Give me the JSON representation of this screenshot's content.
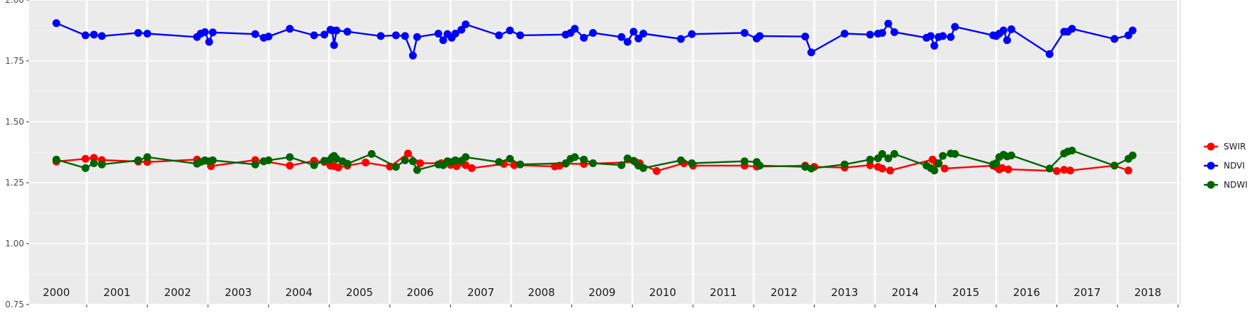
{
  "chart_data": {
    "type": "line",
    "title": "",
    "xlabel": "",
    "ylabel": "",
    "ylim": [
      0.75,
      2.0
    ],
    "yticks": [
      "0.75",
      "1.00",
      "1.25",
      "1.50",
      "1.75",
      "2.00"
    ],
    "xlim": [
      1999.55,
      2018.55
    ],
    "year_labels": [
      "2000",
      "2001",
      "2002",
      "2003",
      "2004",
      "2005",
      "2006",
      "2007",
      "2008",
      "2009",
      "2010",
      "2011",
      "2012",
      "2013",
      "2014",
      "2015",
      "2016",
      "2017",
      "2018"
    ],
    "grid": true,
    "legend_position": "right",
    "series": [
      {
        "name": "SWIR",
        "color": "#ff0000",
        "x": [
          2000.0,
          2000.48,
          2000.62,
          2000.75,
          2001.35,
          2001.5,
          2002.32,
          2002.45,
          2002.55,
          2003.28,
          2003.42,
          2003.85,
          2004.25,
          2004.42,
          2004.52,
          2004.58,
          2004.65,
          2004.8,
          2005.1,
          2005.5,
          2005.8,
          2006.0,
          2006.35,
          2006.5,
          2006.6,
          2006.75,
          2006.85,
          2007.38,
          2007.55,
          2008.22,
          2008.3,
          2008.4,
          2008.7,
          2009.55,
          2009.62,
          2009.9,
          2010.35,
          2010.5,
          2011.35,
          2011.55,
          2012.35,
          2012.5,
          2013.0,
          2013.42,
          2013.55,
          2013.62,
          2013.75,
          2014.45,
          2014.52,
          2014.55,
          2014.65,
          2015.45,
          2015.5,
          2015.55,
          2015.6,
          2015.7,
          2016.5,
          2016.62,
          2016.72,
          2017.45,
          2017.68
        ],
        "values": [
          1.337,
          1.348,
          1.352,
          1.343,
          1.337,
          1.335,
          1.345,
          1.34,
          1.318,
          1.343,
          1.338,
          1.32,
          1.34,
          1.335,
          1.32,
          1.318,
          1.313,
          1.32,
          1.333,
          1.316,
          1.37,
          1.33,
          1.33,
          1.323,
          1.318,
          1.322,
          1.31,
          1.327,
          1.322,
          1.317,
          1.32,
          1.328,
          1.327,
          1.335,
          1.33,
          1.298,
          1.33,
          1.32,
          1.32,
          1.316,
          1.32,
          1.315,
          1.312,
          1.322,
          1.315,
          1.308,
          1.3,
          1.345,
          1.33,
          1.328,
          1.308,
          1.32,
          1.315,
          1.305,
          1.31,
          1.305,
          1.298,
          1.303,
          1.3,
          1.32,
          1.3
        ]
      },
      {
        "name": "NDVI",
        "color": "#0000ff",
        "x": [
          2000.0,
          2000.48,
          2000.62,
          2000.75,
          2001.35,
          2001.5,
          2002.32,
          2002.38,
          2002.45,
          2002.52,
          2002.58,
          2003.28,
          2003.42,
          2003.5,
          2003.85,
          2004.25,
          2004.42,
          2004.52,
          2004.55,
          2004.58,
          2004.62,
          2004.8,
          2005.35,
          2005.6,
          2005.75,
          2005.88,
          2005.95,
          2006.3,
          2006.38,
          2006.45,
          2006.52,
          2006.58,
          2006.68,
          2006.75,
          2007.3,
          2007.48,
          2007.65,
          2008.4,
          2008.48,
          2008.55,
          2008.7,
          2008.85,
          2009.32,
          2009.42,
          2009.52,
          2009.6,
          2009.68,
          2010.3,
          2010.48,
          2011.35,
          2011.55,
          2011.6,
          2012.35,
          2012.45,
          2013.0,
          2013.42,
          2013.55,
          2013.62,
          2013.72,
          2013.82,
          2014.35,
          2014.42,
          2014.48,
          2014.55,
          2014.62,
          2014.75,
          2014.82,
          2015.45,
          2015.5,
          2015.55,
          2015.62,
          2015.68,
          2015.75,
          2016.38,
          2016.62,
          2016.68,
          2016.75,
          2017.45,
          2017.68,
          2017.75
        ],
        "values": [
          1.905,
          1.855,
          1.858,
          1.852,
          1.865,
          1.862,
          1.848,
          1.862,
          1.868,
          1.828,
          1.867,
          1.86,
          1.845,
          1.85,
          1.882,
          1.855,
          1.858,
          1.878,
          1.875,
          1.815,
          1.875,
          1.87,
          1.852,
          1.855,
          1.852,
          1.772,
          1.848,
          1.862,
          1.835,
          1.86,
          1.845,
          1.862,
          1.878,
          1.9,
          1.855,
          1.875,
          1.855,
          1.858,
          1.865,
          1.882,
          1.845,
          1.865,
          1.848,
          1.828,
          1.87,
          1.842,
          1.862,
          1.84,
          1.86,
          1.865,
          1.842,
          1.852,
          1.85,
          1.785,
          1.862,
          1.858,
          1.862,
          1.865,
          1.903,
          1.868,
          1.845,
          1.852,
          1.812,
          1.848,
          1.852,
          1.848,
          1.89,
          1.855,
          1.852,
          1.862,
          1.875,
          1.835,
          1.88,
          1.778,
          1.87,
          1.87,
          1.882,
          1.84,
          1.855,
          1.875
        ]
      },
      {
        "name": "NDWI",
        "color": "#006400",
        "x": [
          2000.0,
          2000.48,
          2000.62,
          2000.75,
          2001.35,
          2001.5,
          2002.32,
          2002.38,
          2002.45,
          2002.52,
          2002.58,
          2003.28,
          2003.42,
          2003.5,
          2003.85,
          2004.25,
          2004.42,
          2004.52,
          2004.55,
          2004.58,
          2004.62,
          2004.72,
          2004.8,
          2005.2,
          2005.6,
          2005.75,
          2005.88,
          2005.95,
          2006.3,
          2006.38,
          2006.45,
          2006.52,
          2006.58,
          2006.68,
          2006.75,
          2007.3,
          2007.48,
          2007.65,
          2008.4,
          2008.48,
          2008.55,
          2008.7,
          2008.85,
          2009.32,
          2009.42,
          2009.52,
          2009.6,
          2009.68,
          2010.3,
          2010.48,
          2011.35,
          2011.55,
          2011.6,
          2012.35,
          2012.45,
          2013.0,
          2013.42,
          2013.55,
          2013.62,
          2013.72,
          2013.82,
          2014.35,
          2014.42,
          2014.48,
          2014.55,
          2014.62,
          2014.75,
          2014.82,
          2015.45,
          2015.5,
          2015.55,
          2015.62,
          2015.68,
          2015.75,
          2016.38,
          2016.62,
          2016.68,
          2016.75,
          2017.45,
          2017.68,
          2017.75
        ],
        "values": [
          1.345,
          1.31,
          1.33,
          1.325,
          1.342,
          1.355,
          1.328,
          1.335,
          1.342,
          1.338,
          1.342,
          1.325,
          1.338,
          1.342,
          1.355,
          1.322,
          1.34,
          1.345,
          1.355,
          1.36,
          1.348,
          1.338,
          1.328,
          1.368,
          1.315,
          1.342,
          1.338,
          1.302,
          1.325,
          1.322,
          1.338,
          1.335,
          1.342,
          1.34,
          1.355,
          1.335,
          1.348,
          1.325,
          1.33,
          1.348,
          1.355,
          1.345,
          1.33,
          1.322,
          1.35,
          1.34,
          1.32,
          1.31,
          1.342,
          1.33,
          1.338,
          1.335,
          1.32,
          1.315,
          1.308,
          1.325,
          1.345,
          1.35,
          1.368,
          1.35,
          1.368,
          1.32,
          1.31,
          1.3,
          1.33,
          1.36,
          1.37,
          1.368,
          1.325,
          1.33,
          1.355,
          1.365,
          1.358,
          1.362,
          1.308,
          1.37,
          1.378,
          1.382,
          1.32,
          1.348,
          1.362
        ]
      }
    ]
  }
}
